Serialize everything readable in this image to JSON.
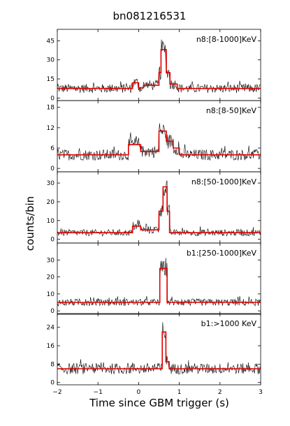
{
  "title": "bn081216531",
  "xlabel": "Time since GBM trigger (s)",
  "ylabel": "counts/bin",
  "xaxis": {
    "ticks": [
      -2,
      -1,
      0,
      1,
      2,
      3
    ],
    "labels": [
      "−2",
      "−1",
      "0",
      "1",
      "2",
      "3"
    ],
    "xlim": [
      -2,
      3
    ]
  },
  "colors": {
    "lightcurve": "#000000",
    "blocks": "#e00000"
  },
  "chart_data": [
    {
      "type": "line",
      "label": "n8:[8-1000]KeV",
      "ylim": [
        -2,
        54
      ],
      "yticks": [
        0,
        15,
        30,
        45
      ],
      "background": 7.5,
      "blocks": [
        [
          -2,
          -0.15,
          7.5
        ],
        [
          -0.15,
          0.0,
          12
        ],
        [
          0.0,
          0.12,
          8
        ],
        [
          0.12,
          0.5,
          10
        ],
        [
          0.5,
          0.55,
          20
        ],
        [
          0.55,
          0.68,
          38
        ],
        [
          0.68,
          0.77,
          20
        ],
        [
          0.77,
          0.95,
          11
        ],
        [
          0.95,
          3.0,
          7.5
        ]
      ],
      "noise": 3.2
    },
    {
      "type": "line",
      "label": "n8:[8-50]KeV",
      "ylim": [
        -1,
        20
      ],
      "yticks": [
        0,
        6,
        12,
        18
      ],
      "background": 4,
      "blocks": [
        [
          -2,
          -0.25,
          4
        ],
        [
          -0.25,
          0.05,
          7
        ],
        [
          0.05,
          0.5,
          5
        ],
        [
          0.5,
          0.68,
          11
        ],
        [
          0.68,
          0.85,
          8
        ],
        [
          0.85,
          1.0,
          6
        ],
        [
          1.0,
          3.0,
          4
        ]
      ],
      "noise": 2.0
    },
    {
      "type": "line",
      "label": "n8:[50-1000]KeV",
      "ylim": [
        -2,
        36
      ],
      "yticks": [
        0,
        10,
        20,
        30
      ],
      "background": 3.5,
      "blocks": [
        [
          -2,
          -0.15,
          3.5
        ],
        [
          -0.15,
          0.05,
          7
        ],
        [
          0.05,
          0.5,
          5
        ],
        [
          0.5,
          0.6,
          15
        ],
        [
          0.6,
          0.7,
          28
        ],
        [
          0.7,
          0.76,
          15
        ],
        [
          0.76,
          3.0,
          3.5
        ]
      ],
      "noise": 2.3
    },
    {
      "type": "line",
      "label": "b1:[250-1000]KeV",
      "ylim": [
        -2,
        40
      ],
      "yticks": [
        0,
        10,
        20,
        30
      ],
      "background": 5,
      "blocks": [
        [
          -2,
          0.52,
          5
        ],
        [
          0.52,
          0.7,
          25
        ],
        [
          0.7,
          3.0,
          5
        ]
      ],
      "noise": 2.3
    },
    {
      "type": "line",
      "label": "b1:>1000 KeV",
      "ylim": [
        -1,
        30
      ],
      "yticks": [
        0,
        8,
        16,
        24
      ],
      "background": 6,
      "blocks": [
        [
          -2,
          0.58,
          6
        ],
        [
          0.58,
          0.67,
          22
        ],
        [
          0.67,
          0.75,
          9
        ],
        [
          0.75,
          3.0,
          6
        ]
      ],
      "noise": 2.4
    }
  ]
}
